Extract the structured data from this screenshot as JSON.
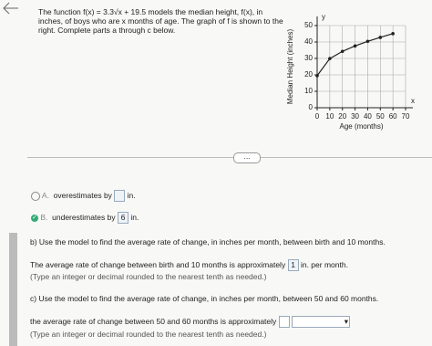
{
  "problem": {
    "intro_start": "The function",
    "formula": "f(x) = 3.3√x + 19.5",
    "intro_end": "models the median height, f(x), in inches, of boys who are x months of age. The graph of f is shown to the right. Complete parts a through c below."
  },
  "chart_data": {
    "type": "line",
    "x_label": "Age (months)",
    "y_label": "Median Height (inches)",
    "x_axis_letter": "x",
    "y_axis_letter": "y",
    "x": [
      0,
      10,
      20,
      30,
      40,
      50,
      60
    ],
    "values": [
      19.5,
      29.9,
      34.3,
      37.6,
      40.4,
      42.8,
      45.1
    ],
    "color": "#222",
    "xlim": [
      0,
      70
    ],
    "ylim": [
      0,
      50
    ],
    "xticks": [
      0,
      10,
      20,
      30,
      40,
      50,
      60,
      70
    ],
    "yticks": [
      0,
      10,
      20,
      30,
      40,
      50
    ],
    "grid": true
  },
  "more_button": "...",
  "options": [
    {
      "letter": "A.",
      "text": "overestimates by",
      "answer": "",
      "unit": "in."
    },
    {
      "letter": "B.",
      "text": "underestimates by",
      "answer": "6",
      "unit": "in."
    }
  ],
  "part_b": {
    "question": "b) Use the model to find the average rate of change, in inches per month, between birth and 10 months.",
    "answer_text": "The average rate of change between birth and 10 months is approximately",
    "answer": "1",
    "unit": "in. per month.",
    "hint": "(Type an integer or decimal rounded to the nearest tenth as needed.)"
  },
  "part_c": {
    "question": "c) Use the model to find the average rate of change, in inches per month, between 50 and 60 months.",
    "answer_text": "the average rate of change between 50 and 60 months is approximately",
    "hint": "(Type an integer or decimal rounded to the nearest tenth as needed.)"
  }
}
